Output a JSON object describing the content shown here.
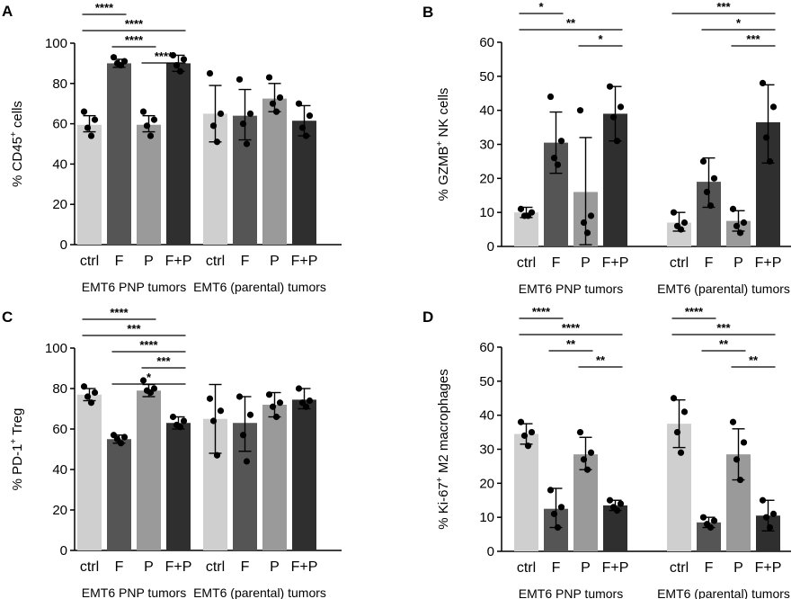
{
  "colors": [
    "#cfcfcf",
    "#555555",
    "#9a9a9a",
    "#2f2f2f"
  ],
  "chart_data": [
    {
      "panel": "A",
      "type": "bar",
      "ylabel_main": "% CD45",
      "ylabel_sup": "+",
      "ylabel_rest": " cells",
      "ylim": [
        0,
        100
      ],
      "yticks": [
        0,
        20,
        40,
        60,
        80,
        100
      ],
      "categories": [
        "ctrl",
        "F",
        "P",
        "F+P"
      ],
      "groups": [
        {
          "label": "EMT6 PNP tumors",
          "means": [
            59.5,
            90,
            59.5,
            90
          ],
          "err": [
            [
              56,
              64
            ],
            [
              88,
              92
            ],
            [
              56,
              64
            ],
            [
              86,
              94
            ]
          ],
          "points": [
            [
              66,
              62,
              58,
              54
            ],
            [
              93,
              91,
              90,
              89
            ],
            [
              66,
              62,
              59,
              54
            ],
            [
              94,
              92,
              89,
              86
            ]
          ]
        },
        {
          "label": "EMT6 (parental) tumors",
          "means": [
            65,
            64,
            72.5,
            61.5
          ],
          "err": [
            [
              51,
              79
            ],
            [
              52,
              77
            ],
            [
              66,
              80
            ],
            [
              54,
              69
            ]
          ],
          "points": [
            [
              85,
              65,
              59,
              51
            ],
            [
              82,
              65,
              60,
              50
            ],
            [
              83,
              73,
              70,
              66
            ],
            [
              70,
              64,
              58,
              54
            ]
          ]
        }
      ],
      "significance": [
        {
          "group": 0,
          "from": 0,
          "to": 1,
          "label": "****"
        },
        {
          "group": 0,
          "from": 0,
          "to": 3,
          "label": "****"
        },
        {
          "group": 0,
          "from": 1,
          "to": 2,
          "label": "****"
        },
        {
          "group": 0,
          "from": 2,
          "to": 3,
          "label": "****"
        }
      ]
    },
    {
      "panel": "B",
      "type": "bar",
      "ylabel_main": "% GZMB",
      "ylabel_sup": "+",
      "ylabel_rest": " NK cells",
      "ylim": [
        0,
        60
      ],
      "yticks": [
        0,
        10,
        20,
        30,
        40,
        50,
        60
      ],
      "categories": [
        "ctrl",
        "F",
        "P",
        "F+P"
      ],
      "groups": [
        {
          "label": "EMT6 PNP tumors",
          "means": [
            10,
            30.5,
            16,
            39
          ],
          "err": [
            [
              8.5,
              11.5
            ],
            [
              21.5,
              39.5
            ],
            [
              0.5,
              32
            ],
            [
              31,
              47
            ]
          ],
          "points": [
            [
              11,
              10,
              9,
              9
            ],
            [
              44,
              31,
              26,
              24
            ],
            [
              40,
              9,
              7,
              4
            ],
            [
              47,
              41,
              38,
              31
            ]
          ]
        },
        {
          "label": "EMT6 (parental) tumors",
          "means": [
            7,
            19,
            7.5,
            36.5
          ],
          "err": [
            [
              4.5,
              10
            ],
            [
              11.5,
              26
            ],
            [
              4.5,
              10.5
            ],
            [
              24.5,
              47.5
            ]
          ],
          "points": [
            [
              10,
              7,
              6,
              5
            ],
            [
              25,
              20,
              16,
              12
            ],
            [
              11,
              7,
              6,
              4
            ],
            [
              48,
              41,
              32,
              25
            ]
          ]
        }
      ],
      "significance": [
        {
          "group": 0,
          "from": 0,
          "to": 1,
          "label": "*"
        },
        {
          "group": 0,
          "from": 0,
          "to": 3,
          "label": "**"
        },
        {
          "group": 0,
          "from": 2,
          "to": 3,
          "label": "*"
        },
        {
          "group": 1,
          "from": 0,
          "to": 3,
          "label": "***"
        },
        {
          "group": 1,
          "from": 1,
          "to": 3,
          "label": "*"
        },
        {
          "group": 1,
          "from": 2,
          "to": 3,
          "label": "***"
        }
      ]
    },
    {
      "panel": "C",
      "type": "bar",
      "ylabel_main": "% PD-1",
      "ylabel_sup": "+",
      "ylabel_rest": " Treg",
      "ylim": [
        0,
        100
      ],
      "yticks": [
        0,
        20,
        40,
        60,
        80,
        100
      ],
      "categories": [
        "ctrl",
        "F",
        "P",
        "F+P"
      ],
      "groups": [
        {
          "label": "EMT6 PNP tumors",
          "means": [
            77,
            55,
            79,
            63
          ],
          "err": [
            [
              74,
              80
            ],
            [
              53,
              57
            ],
            [
              76,
              82
            ],
            [
              60,
              66
            ]
          ],
          "points": [
            [
              81,
              78,
              76,
              73
            ],
            [
              57,
              56,
              55,
              53
            ],
            [
              84,
              80,
              79,
              78
            ],
            [
              66,
              64,
              62,
              61
            ]
          ]
        },
        {
          "label": "EMT6 (parental) tumors",
          "means": [
            65,
            63,
            72,
            74.5
          ],
          "err": [
            [
              48,
              82
            ],
            [
              49,
              76
            ],
            [
              66,
              78
            ],
            [
              70,
              80
            ]
          ],
          "points": [
            [
              75,
              69,
              64,
              47
            ],
            [
              76,
              67,
              57,
              44
            ],
            [
              77,
              73,
              71,
              66
            ],
            [
              80,
              74,
              73,
              71
            ]
          ]
        }
      ],
      "significance": [
        {
          "group": 0,
          "from": 0,
          "to": 2,
          "label": "****"
        },
        {
          "group": 0,
          "from": 0,
          "to": 3,
          "label": "***"
        },
        {
          "group": 0,
          "from": 1,
          "to": 3,
          "label": "****"
        },
        {
          "group": 0,
          "from": 2,
          "to": 3,
          "label": "***"
        },
        {
          "group": 0,
          "from": 1,
          "to": 3,
          "label": "*"
        }
      ]
    },
    {
      "panel": "D",
      "type": "bar",
      "ylabel_main": "% Ki-67",
      "ylabel_sup": "+",
      "ylabel_rest": " M2 macrophages",
      "ylim": [
        0,
        60
      ],
      "yticks": [
        0,
        10,
        20,
        30,
        40,
        50,
        60
      ],
      "categories": [
        "ctrl",
        "F",
        "P",
        "F+P"
      ],
      "groups": [
        {
          "label": "EMT6 PNP tumors",
          "means": [
            34.5,
            12.5,
            28.5,
            13.5
          ],
          "err": [
            [
              31.5,
              37.5
            ],
            [
              7,
              18.5
            ],
            [
              24,
              33.5
            ],
            [
              12,
              15
            ]
          ],
          "points": [
            [
              38,
              35,
              34,
              31
            ],
            [
              18,
              13,
              11,
              7
            ],
            [
              35,
              29,
              27,
              24
            ],
            [
              15,
              14,
              13,
              12
            ]
          ]
        },
        {
          "label": "EMT6 (parental) tumors",
          "means": [
            37.5,
            8.5,
            28.5,
            10.5
          ],
          "err": [
            [
              30.5,
              44.5
            ],
            [
              7,
              10
            ],
            [
              21,
              36
            ],
            [
              6,
              15
            ]
          ],
          "points": [
            [
              45,
              41,
              35,
              29
            ],
            [
              10,
              9,
              8,
              7
            ],
            [
              38,
              32,
              27,
              21
            ],
            [
              15,
              11,
              10,
              7
            ]
          ]
        }
      ],
      "significance": [
        {
          "group": 0,
          "from": 0,
          "to": 1,
          "label": "****"
        },
        {
          "group": 0,
          "from": 0,
          "to": 3,
          "label": "****"
        },
        {
          "group": 0,
          "from": 1,
          "to": 2,
          "label": "**"
        },
        {
          "group": 0,
          "from": 2,
          "to": 3,
          "label": "**"
        },
        {
          "group": 1,
          "from": 0,
          "to": 1,
          "label": "****"
        },
        {
          "group": 1,
          "from": 0,
          "to": 3,
          "label": "***"
        },
        {
          "group": 1,
          "from": 1,
          "to": 2,
          "label": "**"
        },
        {
          "group": 1,
          "from": 2,
          "to": 3,
          "label": "**"
        }
      ]
    }
  ]
}
